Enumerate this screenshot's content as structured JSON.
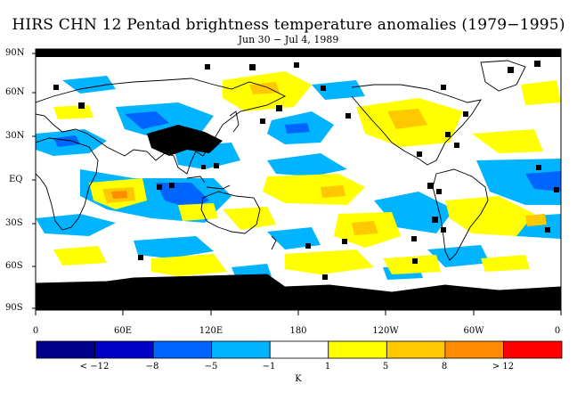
{
  "title": "HIRS CHN 12 Pentad brightness temperature anomalies (1979−1995)",
  "subtitle": "Jun 30 − Jul 4, 1989",
  "lat_labels": [
    "90N",
    "60N",
    "30N",
    "EQ",
    "30S",
    "60S",
    "90S"
  ],
  "lon_labels": [
    "0",
    "60E",
    "120E",
    "180",
    "120W",
    "60W",
    "0"
  ],
  "colorbar": {
    "colors": [
      "#00008c",
      "#0000c8",
      "#0064ff",
      "#00b4ff",
      "#ffffff",
      "#ffff00",
      "#ffc800",
      "#ff8c00",
      "#ff0000"
    ],
    "tick_labels": [
      "< −12",
      "−8",
      "−5",
      "−1",
      "1",
      "5",
      "8",
      "> 12"
    ],
    "units": "K"
  }
}
